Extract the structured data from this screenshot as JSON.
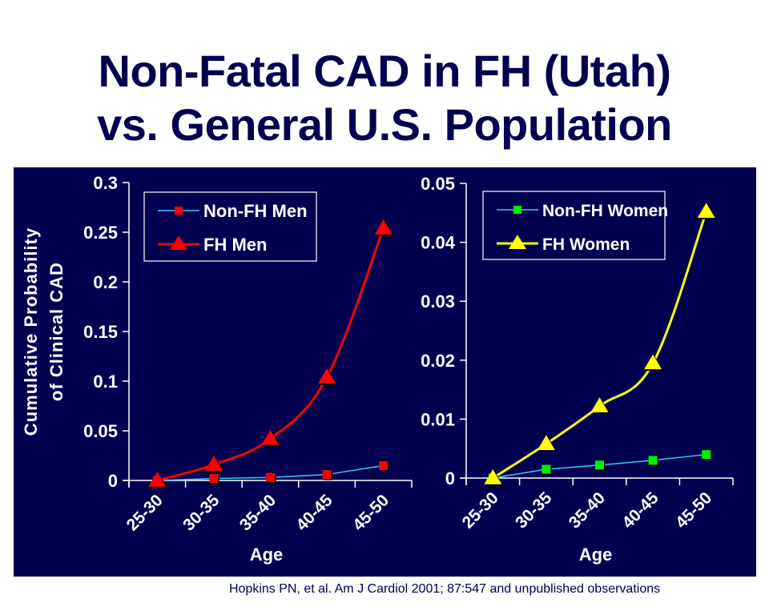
{
  "slide": {
    "title_line1": "Non-Fatal CAD in FH (Utah)",
    "title_line2": "vs. General U.S. Population",
    "citation": "Hopkins PN, et al.  Am J Cardiol 2001; 87:547 and unpublished observations"
  },
  "colors": {
    "title": "#000050",
    "panel_bg": "#000050",
    "axis": "#ffffff",
    "non_fh_line": "#33ccff",
    "fh_men": "#ff0000",
    "non_fh_women_marker": "#00ee00",
    "fh_women": "#ffff00"
  },
  "chart_data": [
    {
      "type": "line",
      "title": "",
      "xlabel": "Age",
      "ylabel_line1": "Cumulative Probability",
      "ylabel_line2": "of Clinical CAD",
      "categories": [
        "25-30",
        "30-35",
        "35-40",
        "40-45",
        "45-50"
      ],
      "ylim": [
        0,
        0.3
      ],
      "yticks": [
        "0",
        "0.05",
        "0.1",
        "0.15",
        "0.2",
        "0.25",
        "0.3"
      ],
      "ytick_values": [
        0,
        0.05,
        0.1,
        0.15,
        0.2,
        0.25,
        0.3
      ],
      "grid": false,
      "legend_position": "top-left",
      "series": [
        {
          "name": "Non-FH Men",
          "values": [
            0,
            0.002,
            0.003,
            0.006,
            0.015
          ],
          "line_color": "#33ccff",
          "marker": "square",
          "marker_color": "#ff0000",
          "smooth": false
        },
        {
          "name": "FH Men",
          "values": [
            0,
            0.016,
            0.042,
            0.104,
            0.254
          ],
          "line_color": "#ff0000",
          "marker": "triangle",
          "marker_color": "#ff0000",
          "smooth": true
        }
      ]
    },
    {
      "type": "line",
      "title": "",
      "xlabel": "Age",
      "categories": [
        "25-30",
        "30-35",
        "35-40",
        "40-45",
        "45-50"
      ],
      "ylim": [
        0,
        0.05
      ],
      "yticks": [
        "0",
        "0.01",
        "0.02",
        "0.03",
        "0.04",
        "0.05"
      ],
      "ytick_values": [
        0,
        0.01,
        0.02,
        0.03,
        0.04,
        0.05
      ],
      "grid": false,
      "legend_position": "top-left",
      "series": [
        {
          "name": "Non-FH Women",
          "values": [
            0,
            0.0015,
            0.0022,
            0.003,
            0.004
          ],
          "line_color": "#33ccff",
          "marker": "square",
          "marker_color": "#00ee00",
          "smooth": false
        },
        {
          "name": "FH Women",
          "values": [
            0,
            0.0058,
            0.0122,
            0.0195,
            0.0452
          ],
          "line_color": "#ffff00",
          "marker": "triangle",
          "marker_color": "#ffff00",
          "smooth": true
        }
      ]
    }
  ]
}
